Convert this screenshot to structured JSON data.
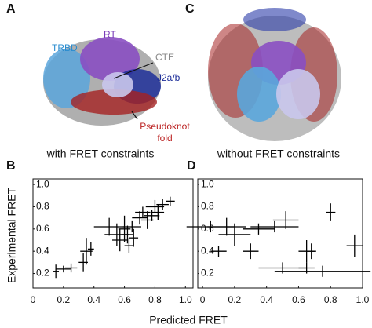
{
  "panel_labels": [
    "A",
    "C",
    "B",
    "D"
  ],
  "structure_labels": {
    "rt": "RT",
    "trbd": "TRBD",
    "cte": "CTE",
    "j2ab": "J2a/b",
    "pseudoknot": [
      "Pseudoknot",
      "fold"
    ]
  },
  "captions": [
    "with FRET constraints",
    "without FRET constraints"
  ],
  "ylabel": "Experimental FRET",
  "xlabel": "Predicted FRET",
  "chart_data": [
    {
      "type": "errorscatter",
      "color": "#000000",
      "x": [
        0.15,
        0.2,
        0.25,
        0.33,
        0.35,
        0.38,
        0.5,
        0.55,
        0.57,
        0.6,
        0.62,
        0.63,
        0.65,
        0.66,
        0.7,
        0.72,
        0.75,
        0.78,
        0.8,
        0.82,
        0.85,
        0.9
      ],
      "values": [
        0.22,
        0.24,
        0.25,
        0.3,
        0.4,
        0.42,
        0.62,
        0.55,
        0.5,
        0.6,
        0.55,
        0.45,
        0.62,
        0.52,
        0.7,
        0.75,
        0.68,
        0.72,
        0.8,
        0.75,
        0.82,
        0.85
      ],
      "xerr": [
        0.02,
        0.05,
        0.04,
        0.03,
        0.04,
        0.02,
        0.1,
        0.08,
        0.05,
        0.04,
        0.04,
        0.03,
        0.06,
        0.03,
        0.05,
        0.05,
        0.04,
        0.05,
        0.06,
        0.04,
        0.04,
        0.03
      ],
      "yerr": [
        0.06,
        0.03,
        0.04,
        0.08,
        0.12,
        0.06,
        0.08,
        0.1,
        0.1,
        0.12,
        0.08,
        0.07,
        0.05,
        0.08,
        0.06,
        0.05,
        0.08,
        0.05,
        0.06,
        0.07,
        0.05,
        0.04
      ],
      "xlim": [
        0,
        1.05
      ],
      "ylim": [
        0.07,
        1.05
      ],
      "xticks": [
        0,
        0.2,
        0.4,
        0.6,
        0.8,
        {
          "value": 1,
          "label": "1.0"
        }
      ],
      "yticks": [
        0.2,
        0.4,
        0.6,
        0.8,
        {
          "value": 1,
          "label": "1.0"
        }
      ]
    },
    {
      "type": "errorscatter",
      "color": "#000000",
      "x": [
        0.05,
        0.1,
        0.15,
        0.2,
        0.3,
        0.35,
        0.45,
        0.5,
        0.52,
        0.65,
        0.68,
        0.65,
        0.75,
        0.8,
        0.95
      ],
      "values": [
        0.62,
        0.4,
        0.62,
        0.55,
        0.4,
        0.6,
        0.62,
        0.25,
        0.68,
        0.4,
        0.4,
        0.25,
        0.22,
        0.75,
        0.45
      ],
      "xerr": [
        0.15,
        0.05,
        0.12,
        0.1,
        0.05,
        0.1,
        0.15,
        0.15,
        0.08,
        0.05,
        0.03,
        0.05,
        0.3,
        0.03,
        0.05
      ],
      "yerr": [
        0.05,
        0.05,
        0.08,
        0.1,
        0.07,
        0.05,
        0.05,
        0.05,
        0.08,
        0.1,
        0.07,
        0.05,
        0.05,
        0.08,
        0.1
      ],
      "xlim": [
        -0.03,
        1.0
      ],
      "ylim": [
        0.07,
        1.05
      ],
      "xticks": [
        0,
        0.2,
        0.4,
        0.6,
        0.8,
        {
          "value": 1,
          "label": "1.0"
        }
      ],
      "yticks": [
        0.2,
        0.4,
        0.6,
        0.8,
        {
          "value": 1,
          "label": "1.0"
        }
      ]
    }
  ]
}
